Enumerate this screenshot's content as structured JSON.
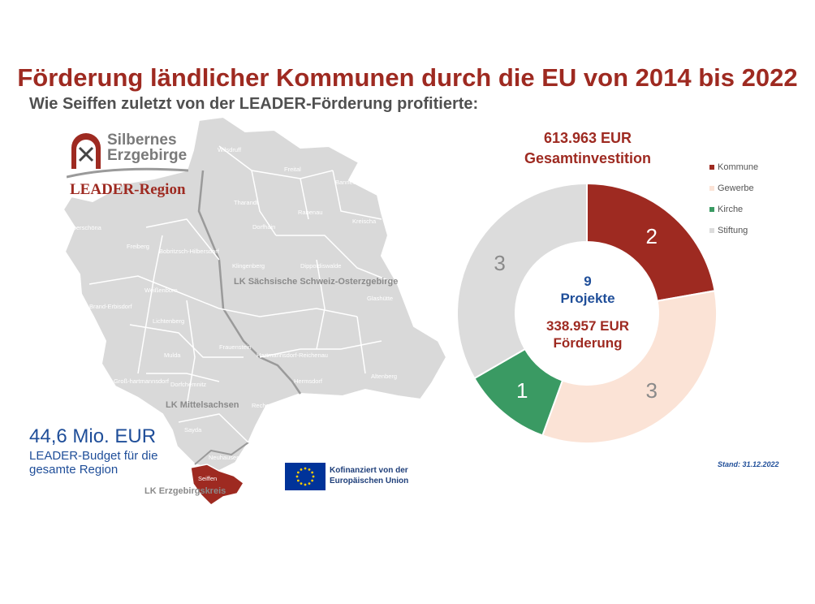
{
  "header": {
    "title": "Förderung ländlicher Kommunen durch die EU von 2014 bis 2022",
    "subtitle": "Wie Seiffen zuletzt von der LEADER-Förderung profitierte:"
  },
  "logo": {
    "line1": "Silbernes",
    "line2": "Erzgebirge",
    "line3": "LEADER-Region"
  },
  "map": {
    "municipalities": [
      "Wilsdruff",
      "Freital",
      "Bannewitz",
      "Tharandt",
      "Rabenau",
      "Kreischa",
      "Dorfhain",
      "Oberschöna",
      "Freiberg",
      "Bobritzsch-Hilbersdorf",
      "Klingenberg",
      "Dippoldiswalde",
      "Weißenborn",
      "Glashütte",
      "Brand-Erbisdorf",
      "Lichtenberg",
      "Frauenstein",
      "Mulda",
      "Hartmannsdorf-Reichenau",
      "Groß-hartmannsdorf",
      "Dorfchemnitz",
      "Hermsdorf",
      "Altenberg",
      "Rechenberg-Bienenmühle",
      "Sayda",
      "Neuhausen",
      "Seiffen"
    ],
    "districts": [
      "LK Sächsische Schweiz-Osterzgebirge",
      "LK Mittelsachsen",
      "LK Erzgebirgskreis"
    ]
  },
  "budget": {
    "value": "44,6 Mio. EUR",
    "text": "LEADER-Budget für die gesamte Region"
  },
  "eu": {
    "text1": "Kofinanziert von der",
    "text2": "Europäischen Union"
  },
  "summary": {
    "investment_value": "613.963 EUR",
    "investment_label": "Gesamtinvestition",
    "projects_count": "9",
    "projects_label": "Projekte",
    "funding_value": "338.957 EUR",
    "funding_label": "Förderung"
  },
  "stand": "Stand: 31.12.2022",
  "chart_data": {
    "type": "pie",
    "categories": [
      "Kommune",
      "Gewerbe",
      "Kirche",
      "Stiftung"
    ],
    "values": [
      2,
      3,
      1,
      3
    ],
    "colors": [
      "#9e2a21",
      "#fbe3d6",
      "#3a9a63",
      "#dcdcdc"
    ],
    "label_colors": [
      "#ffffff",
      "#8a8a8a",
      "#ffffff",
      "#8a8a8a"
    ],
    "legend_position": "right"
  }
}
